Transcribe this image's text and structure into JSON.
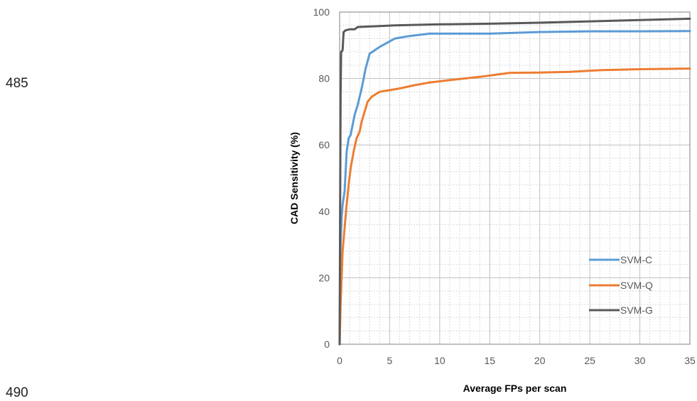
{
  "page": {
    "line_numbers": [
      "485",
      "490"
    ]
  },
  "chart_data": {
    "type": "line",
    "title": "",
    "xlabel": "Average FPs per scan",
    "ylabel": "CAD Sensitivity (%)",
    "xlim": [
      0,
      35
    ],
    "ylim": [
      0,
      100
    ],
    "xticks": [
      "0",
      "5",
      "10",
      "15",
      "20",
      "25",
      "30",
      "35"
    ],
    "yticks": [
      "0",
      "20",
      "40",
      "60",
      "80",
      "100"
    ],
    "grid": true,
    "legend_position": "bottom-right",
    "series": [
      {
        "name": "SVM-C",
        "color": "#5B9BD5",
        "points": [
          [
            0,
            0
          ],
          [
            0.05,
            22
          ],
          [
            0.1,
            30
          ],
          [
            0.2,
            38
          ],
          [
            0.3,
            42
          ],
          [
            0.5,
            46
          ],
          [
            0.6,
            52
          ],
          [
            0.7,
            58
          ],
          [
            0.9,
            62
          ],
          [
            1.1,
            63
          ],
          [
            1.3,
            66
          ],
          [
            1.5,
            69
          ],
          [
            1.8,
            72
          ],
          [
            2.2,
            77
          ],
          [
            2.6,
            83
          ],
          [
            3.0,
            87.5
          ],
          [
            4.0,
            89.5
          ],
          [
            5.5,
            92
          ],
          [
            7,
            92.8
          ],
          [
            9,
            93.5
          ],
          [
            12,
            93.5
          ],
          [
            15,
            93.5
          ],
          [
            20,
            94
          ],
          [
            25,
            94.2
          ],
          [
            30,
            94.2
          ],
          [
            35,
            94.3
          ]
        ]
      },
      {
        "name": "SVM-Q",
        "color": "#ED7D31",
        "points": [
          [
            0,
            0
          ],
          [
            0.1,
            12
          ],
          [
            0.2,
            20
          ],
          [
            0.3,
            28
          ],
          [
            0.5,
            35
          ],
          [
            0.7,
            42
          ],
          [
            0.9,
            48
          ],
          [
            1.1,
            53
          ],
          [
            1.4,
            58
          ],
          [
            1.7,
            62
          ],
          [
            2.0,
            64
          ],
          [
            2.2,
            67
          ],
          [
            2.5,
            70
          ],
          [
            2.8,
            73
          ],
          [
            3.2,
            74.5
          ],
          [
            4.0,
            76
          ],
          [
            5.0,
            76.5
          ],
          [
            6.0,
            77
          ],
          [
            7.5,
            78
          ],
          [
            9,
            78.8
          ],
          [
            11,
            79.5
          ],
          [
            14,
            80.5
          ],
          [
            16.5,
            81.5
          ],
          [
            17,
            81.7
          ],
          [
            20,
            81.8
          ],
          [
            23,
            82
          ],
          [
            26,
            82.5
          ],
          [
            30,
            82.8
          ],
          [
            35,
            83
          ]
        ]
      },
      {
        "name": "SVM-G",
        "color": "#595959",
        "points": [
          [
            0,
            0
          ],
          [
            0.05,
            40
          ],
          [
            0.1,
            75
          ],
          [
            0.15,
            88
          ],
          [
            0.3,
            88.5
          ],
          [
            0.4,
            94
          ],
          [
            0.6,
            94.5
          ],
          [
            1.0,
            94.8
          ],
          [
            1.5,
            94.8
          ],
          [
            1.8,
            95.5
          ],
          [
            2.5,
            95.6
          ],
          [
            4,
            95.8
          ],
          [
            5.5,
            96
          ],
          [
            10,
            96.3
          ],
          [
            15,
            96.5
          ],
          [
            20,
            96.8
          ],
          [
            25,
            97.2
          ],
          [
            30,
            97.6
          ],
          [
            35,
            98
          ]
        ]
      }
    ]
  }
}
